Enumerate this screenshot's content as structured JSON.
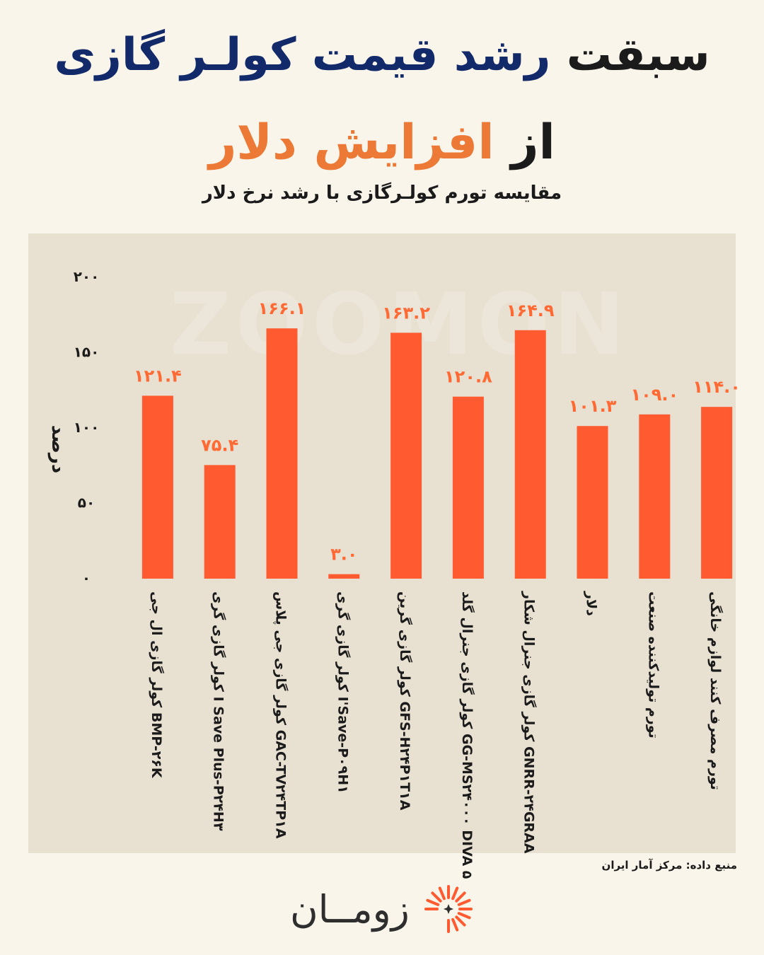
{
  "title": {
    "line1_dark": "سبقت",
    "line1_navy": "رشد قیمت کولـر گازی",
    "line2_dark": "از",
    "line2_orange": "افزایش دلار"
  },
  "subtitle": "مقایسه تورم کولـرگازی با رشد نرخ دلار",
  "watermark": "ZOOMON",
  "source": "منبع داده: مرکز آمار ایران",
  "logo": {
    "text": "زومــان"
  },
  "colors": {
    "bar": "#ff5a30",
    "value_label": "#ff6a34",
    "navy": "#12296a",
    "orange_title": "#ec7a36",
    "panel": "#e8e0d1",
    "background": "#faf5ea"
  },
  "chart_data": {
    "type": "bar",
    "ylabel": "درصد",
    "ylim": [
      0,
      200
    ],
    "yticks": [
      0,
      50,
      100,
      150,
      200
    ],
    "ytick_labels": [
      "۰",
      "۵۰",
      "۱۰۰",
      "۱۵۰",
      "۲۰۰"
    ],
    "grid": false,
    "categories": [
      "کولر گازی ال جی BMP-۲۶K",
      "کولر گازی گری I Save Plus-P۲۴H۳",
      "کولر گازی جی پلاس GAC-TV۲۴TP۱A",
      "کولر گازی گری I'Save-P۰۹H۱",
      "کولر گازی گرین GFS-H۲۴P۱T۱A",
      "کولر گازی جنرال گلد GG-MS۲۴۰۰۰ DIVA ۵",
      "کولر گازی جنرال شکار GNRR-۲۴GRAA",
      "دلار",
      "تورم تولیدکننده صنعت",
      "تورم مصرف کنند لوازم خانگی"
    ],
    "values": [
      121.4,
      75.4,
      166.1,
      3.0,
      163.2,
      120.8,
      164.9,
      101.3,
      109.0,
      114.0
    ],
    "value_labels": [
      "۱۲۱.۴",
      "۷۵.۴",
      "۱۶۶.۱",
      "۳.۰",
      "۱۶۳.۲",
      "۱۲۰.۸",
      "۱۶۴.۹",
      "۱۰۱.۳",
      "۱۰۹.۰",
      "۱۱۴.۰"
    ]
  }
}
